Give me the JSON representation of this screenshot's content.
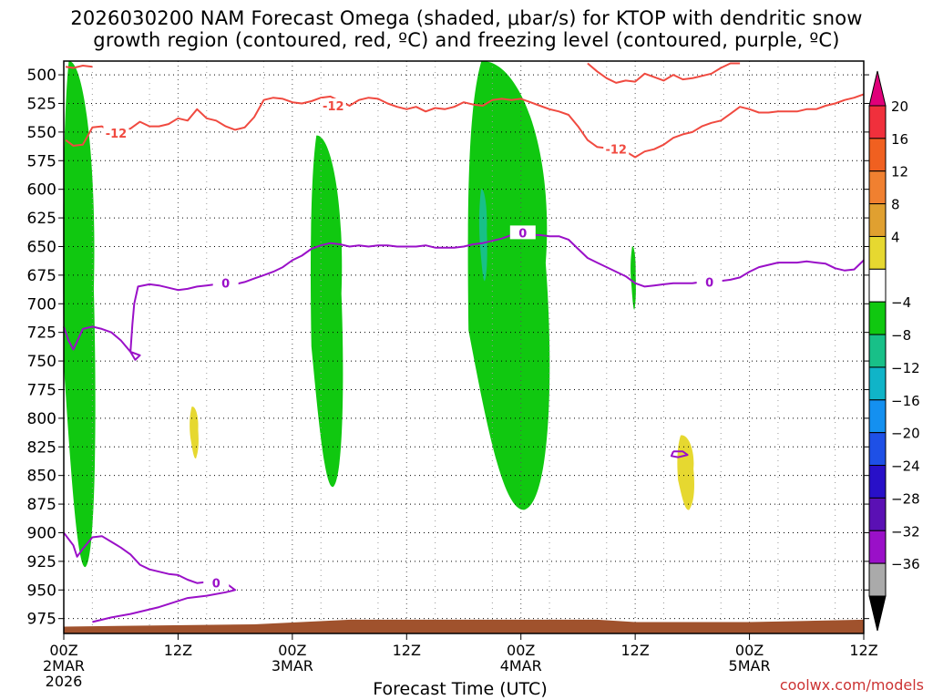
{
  "title": {
    "line1": "2026030200 NAM Forecast Omega (shaded, μbar/s) for KTOP with dendritic snow",
    "line2": "growth region (contoured, red, ºC) and freezing level (contoured, purple, ºC)"
  },
  "watermark": "coolwx.com/models",
  "chart_data": {
    "type": "time-height contour",
    "xlabel": "Forecast Time (UTC)",
    "ylabel": "Pressure (hPa)",
    "xlim_hours": [
      0,
      84
    ],
    "ylim_hpa": [
      488,
      988
    ],
    "y_ticks": [
      500,
      525,
      550,
      575,
      600,
      625,
      650,
      675,
      700,
      725,
      750,
      775,
      800,
      825,
      850,
      875,
      900,
      925,
      950,
      975
    ],
    "x_ticks": [
      {
        "hour": 0,
        "label": "00Z",
        "sub": [
          "2MAR",
          "2026"
        ]
      },
      {
        "hour": 12,
        "label": "12Z",
        "sub": []
      },
      {
        "hour": 24,
        "label": "00Z",
        "sub": [
          "3MAR"
        ]
      },
      {
        "hour": 36,
        "label": "12Z",
        "sub": []
      },
      {
        "hour": 48,
        "label": "00Z",
        "sub": [
          "4MAR"
        ]
      },
      {
        "hour": 60,
        "label": "12Z",
        "sub": []
      },
      {
        "hour": 72,
        "label": "00Z",
        "sub": [
          "5MAR"
        ]
      },
      {
        "hour": 84,
        "label": "12Z",
        "sub": []
      }
    ],
    "colorbar": {
      "labels": [
        "20",
        "16",
        "12",
        "8",
        "4",
        "−4",
        "−8",
        "−12",
        "−16",
        "−20",
        "−24",
        "−28",
        "−32",
        "−36"
      ],
      "colors": [
        "#e0007a",
        "#f0303c",
        "#f06020",
        "#f08030",
        "#e0a030",
        "#e6d830",
        "#ffffff",
        "#10c810",
        "#18c088",
        "#10b4c8",
        "#1490f0",
        "#1e50e6",
        "#2810c8",
        "#5a10b4",
        "#9a10c8",
        "#aaaaaa",
        "#000000"
      ]
    },
    "dendritic_contour": {
      "label": "-12",
      "color": "#f04a40",
      "points": [
        [
          0.2,
          557
        ],
        [
          1,
          562
        ],
        [
          2,
          561
        ],
        [
          3,
          546
        ],
        [
          4,
          545
        ],
        [
          5,
          550
        ],
        [
          6,
          548
        ],
        [
          7,
          547
        ],
        [
          8,
          541
        ],
        [
          9,
          545
        ],
        [
          10,
          545
        ],
        [
          11,
          543
        ],
        [
          12,
          538
        ],
        [
          13,
          540
        ],
        [
          14,
          530
        ],
        [
          15,
          538
        ],
        [
          16,
          540
        ],
        [
          17,
          545
        ],
        [
          18,
          548
        ],
        [
          19,
          546
        ],
        [
          20,
          537
        ],
        [
          21,
          522
        ],
        [
          22,
          520
        ],
        [
          23,
          521
        ],
        [
          24,
          524
        ],
        [
          25,
          525
        ],
        [
          26,
          523
        ],
        [
          27,
          520
        ],
        [
          28,
          519
        ],
        [
          29,
          523
        ],
        [
          30,
          527
        ],
        [
          31,
          522
        ],
        [
          32,
          520
        ],
        [
          33,
          521
        ],
        [
          34,
          525
        ],
        [
          35,
          528
        ],
        [
          36,
          530
        ],
        [
          37,
          528
        ],
        [
          38,
          532
        ],
        [
          39,
          529
        ],
        [
          40,
          530
        ],
        [
          41,
          528
        ],
        [
          42,
          524
        ],
        [
          43,
          526
        ],
        [
          44,
          527
        ],
        [
          45,
          522
        ],
        [
          46,
          521
        ],
        [
          47,
          522
        ],
        [
          48,
          521
        ],
        [
          49,
          524
        ],
        [
          50,
          527
        ],
        [
          51,
          530
        ],
        [
          52,
          532
        ],
        [
          53,
          535
        ],
        [
          54,
          545
        ],
        [
          55,
          557
        ],
        [
          56,
          563
        ],
        [
          57,
          564
        ],
        [
          58,
          566
        ],
        [
          59,
          567
        ],
        [
          60,
          572
        ],
        [
          61,
          567
        ],
        [
          62,
          565
        ],
        [
          63,
          561
        ],
        [
          64,
          555
        ],
        [
          65,
          552
        ],
        [
          66,
          550
        ],
        [
          67,
          545
        ],
        [
          68,
          542
        ],
        [
          69,
          540
        ],
        [
          70,
          534
        ],
        [
          71,
          528
        ],
        [
          72,
          530
        ],
        [
          73,
          533
        ],
        [
          74,
          533
        ],
        [
          75,
          532
        ],
        [
          76,
          532
        ],
        [
          77,
          532
        ],
        [
          78,
          530
        ],
        [
          79,
          530
        ],
        [
          80,
          527
        ],
        [
          81,
          525
        ],
        [
          82,
          522
        ],
        [
          83,
          520
        ],
        [
          84,
          517
        ]
      ],
      "upper_points": [
        [
          0.2,
          493
        ],
        [
          1,
          494
        ],
        [
          2,
          492
        ],
        [
          3,
          493
        ]
      ],
      "upper_right_points": [
        [
          55,
          490
        ],
        [
          56,
          497
        ],
        [
          57,
          503
        ],
        [
          58,
          507
        ],
        [
          59,
          505
        ],
        [
          60,
          506
        ],
        [
          61,
          499
        ],
        [
          62,
          502
        ],
        [
          63,
          505
        ],
        [
          64,
          500
        ],
        [
          65,
          504
        ],
        [
          66,
          503
        ],
        [
          67,
          501
        ],
        [
          68,
          499
        ],
        [
          69,
          494
        ],
        [
          70,
          490
        ],
        [
          71,
          490
        ]
      ]
    },
    "freezing_contour": {
      "label": "0",
      "color": "#9a10c8",
      "points": [
        [
          0,
          720
        ],
        [
          0.5,
          732
        ],
        [
          1,
          740
        ],
        [
          2,
          722
        ],
        [
          3,
          720
        ],
        [
          4,
          722
        ],
        [
          5,
          725
        ],
        [
          6,
          732
        ],
        [
          7,
          742
        ],
        [
          8,
          745
        ],
        [
          7.5,
          749
        ],
        [
          7,
          742
        ],
        [
          7.2,
          718
        ],
        [
          7.4,
          700
        ],
        [
          7.8,
          685
        ],
        [
          9,
          683
        ],
        [
          10,
          684
        ],
        [
          11,
          686
        ],
        [
          12,
          688
        ],
        [
          13,
          687
        ],
        [
          14,
          685
        ],
        [
          15,
          684
        ],
        [
          16,
          683
        ],
        [
          17,
          682
        ],
        [
          18,
          683
        ],
        [
          19,
          681
        ],
        [
          20,
          678
        ],
        [
          21,
          675
        ],
        [
          22,
          672
        ],
        [
          23,
          668
        ],
        [
          24,
          662
        ],
        [
          25,
          658
        ],
        [
          26,
          652
        ],
        [
          27,
          649
        ],
        [
          28,
          647
        ],
        [
          29,
          648
        ],
        [
          30,
          650
        ],
        [
          31,
          649
        ],
        [
          32,
          650
        ],
        [
          33,
          649
        ],
        [
          34,
          649
        ],
        [
          35,
          650
        ],
        [
          36,
          650
        ],
        [
          37,
          650
        ],
        [
          38,
          649
        ],
        [
          39,
          651
        ],
        [
          40,
          651
        ],
        [
          41,
          651
        ],
        [
          42,
          650
        ],
        [
          43,
          648
        ],
        [
          44,
          647
        ],
        [
          45,
          645
        ],
        [
          46,
          643
        ],
        [
          47,
          640
        ],
        [
          48,
          638
        ],
        [
          49,
          640
        ],
        [
          50,
          640
        ],
        [
          51,
          641
        ],
        [
          52,
          641
        ],
        [
          53,
          644
        ],
        [
          54,
          652
        ],
        [
          55,
          660
        ],
        [
          56,
          664
        ],
        [
          57,
          668
        ],
        [
          58,
          672
        ],
        [
          59,
          676
        ],
        [
          60,
          682
        ],
        [
          61,
          685
        ],
        [
          62,
          684
        ],
        [
          63,
          683
        ],
        [
          64,
          682
        ],
        [
          65,
          682
        ],
        [
          66,
          682
        ],
        [
          67,
          681
        ],
        [
          68,
          681
        ],
        [
          69,
          680
        ],
        [
          70,
          679
        ],
        [
          71,
          677
        ],
        [
          72,
          672
        ],
        [
          73,
          668
        ],
        [
          74,
          666
        ],
        [
          75,
          664
        ],
        [
          76,
          664
        ],
        [
          77,
          664
        ],
        [
          78,
          663
        ],
        [
          79,
          664
        ],
        [
          80,
          665
        ],
        [
          81,
          669
        ],
        [
          82,
          671
        ],
        [
          83,
          670
        ],
        [
          84,
          662
        ]
      ],
      "lower_points": [
        [
          0,
          900
        ],
        [
          1,
          911
        ],
        [
          1.4,
          921
        ],
        [
          2,
          914
        ],
        [
          3,
          904
        ],
        [
          4,
          903
        ],
        [
          5,
          908
        ],
        [
          6,
          913
        ],
        [
          7,
          919
        ],
        [
          8,
          928
        ],
        [
          9,
          932
        ],
        [
          10,
          934
        ],
        [
          11,
          936
        ],
        [
          12,
          937
        ],
        [
          13,
          941
        ],
        [
          14,
          944
        ],
        [
          15,
          943
        ],
        [
          16,
          942
        ],
        [
          17,
          944
        ],
        [
          18,
          950
        ],
        [
          17,
          952
        ],
        [
          15,
          955
        ],
        [
          13,
          957
        ],
        [
          10,
          965
        ],
        [
          7,
          971
        ],
        [
          5,
          974
        ],
        [
          3,
          978
        ]
      ],
      "small_loop": [
        [
          64,
          829
        ],
        [
          65,
          829
        ],
        [
          65.5,
          832
        ],
        [
          64.5,
          834
        ],
        [
          63.8,
          833
        ],
        [
          64,
          829
        ]
      ]
    },
    "shaded_regions": [
      {
        "name": "upward-motion-early",
        "value_range": [
          -8,
          -4
        ],
        "color": "#10c810",
        "start_hour": 0,
        "end_hour": 3.5,
        "top_hpa": 488,
        "bottom_hpa": 930
      },
      {
        "name": "upward-motion-3mar-a",
        "value_range": [
          -8,
          -4
        ],
        "color": "#10c810",
        "start_hour": 26,
        "end_hour": 29.5,
        "top_hpa": 553,
        "bottom_hpa": 860
      },
      {
        "name": "upward-motion-4mar",
        "value_range": [
          -8,
          -4
        ],
        "color": "#10c810",
        "start_hour": 42.5,
        "end_hour": 51.5,
        "top_hpa": 488,
        "bottom_hpa": 880
      },
      {
        "name": "stronger-ascent-4mar",
        "value_range": [
          -12,
          -8
        ],
        "color": "#18c088",
        "start_hour": 43.7,
        "end_hour": 44.5,
        "top_hpa": 600,
        "bottom_hpa": 680
      },
      {
        "name": "downward-motion-2mar",
        "value_range": [
          4,
          8
        ],
        "color": "#e6d830",
        "start_hour": 13.3,
        "end_hour": 14.2,
        "top_hpa": 790,
        "bottom_hpa": 835
      },
      {
        "name": "downward-motion-4mar",
        "value_range": [
          4,
          8
        ],
        "color": "#e6d830",
        "start_hour": 64.5,
        "end_hour": 66.3,
        "top_hpa": 815,
        "bottom_hpa": 880
      },
      {
        "name": "upward-motion-thin-4mar",
        "value_range": [
          -8,
          -4
        ],
        "color": "#10c810",
        "start_hour": 59.6,
        "end_hour": 60.1,
        "top_hpa": 650,
        "bottom_hpa": 705
      }
    ],
    "terrain": {
      "color": "#a0522d",
      "surface_hpa": [
        [
          0,
          982
        ],
        [
          20,
          980
        ],
        [
          30,
          976
        ],
        [
          48,
          976
        ],
        [
          56,
          976
        ],
        [
          60,
          978
        ],
        [
          72,
          978
        ],
        [
          84,
          976
        ]
      ]
    }
  }
}
